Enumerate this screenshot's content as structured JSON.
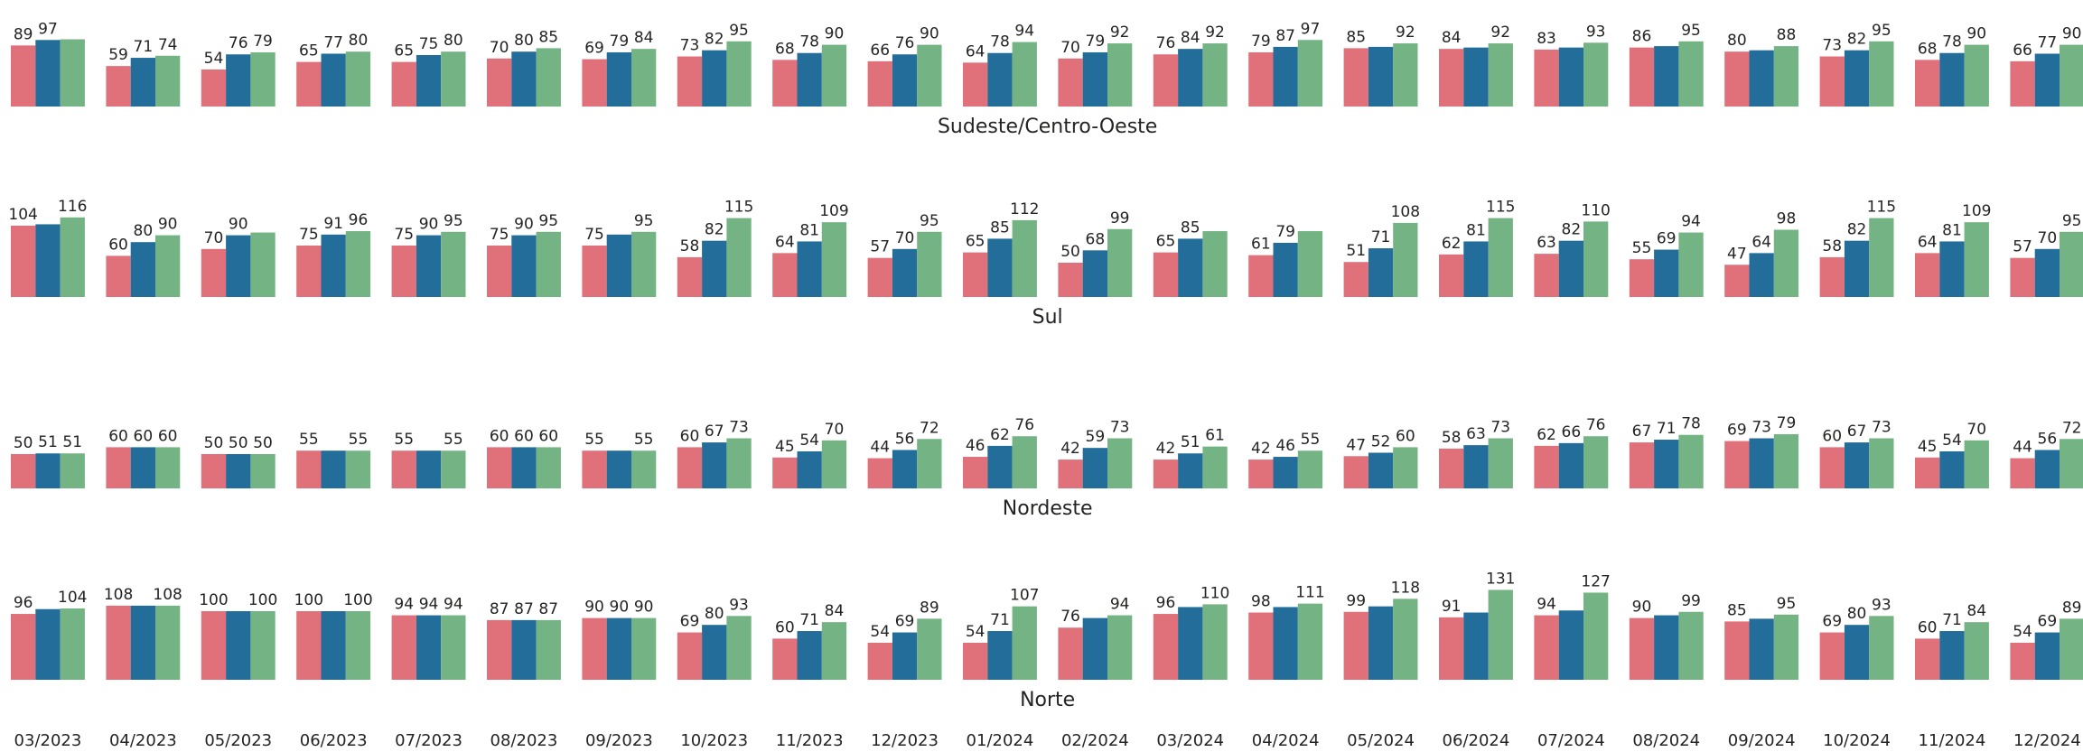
{
  "chart_data": [
    {
      "type": "bar",
      "title": "Sudeste/Centro-Oeste",
      "series": [
        {
          "color": "#e0707a",
          "values": [
            89,
            59,
            54,
            65,
            65,
            70,
            69,
            73,
            68,
            66,
            64,
            70,
            76,
            79,
            85,
            84,
            83,
            86,
            80,
            73,
            68,
            66
          ],
          "value_labels": [
            "89",
            "59",
            "54",
            "65",
            "65",
            "70",
            "69",
            "73",
            "68",
            "66",
            "64",
            "70",
            "76",
            "79",
            "85",
            "84",
            "83",
            "86",
            "80",
            "73",
            "68",
            "66"
          ]
        },
        {
          "color": "#236d9a",
          "values": [
            97,
            71,
            76,
            77,
            75,
            80,
            79,
            82,
            78,
            76,
            78,
            79,
            84,
            87,
            87,
            86,
            86,
            88,
            82,
            82,
            78,
            77
          ],
          "value_labels": [
            "97",
            "71",
            "76",
            "77",
            "75",
            "80",
            "79",
            "82",
            "78",
            "76",
            "78",
            "79",
            "84",
            "87",
            null,
            null,
            null,
            null,
            null,
            "82",
            "78",
            "77"
          ]
        },
        {
          "color": "#74b383",
          "values": [
            98,
            74,
            79,
            80,
            80,
            85,
            84,
            95,
            90,
            90,
            94,
            92,
            92,
            97,
            92,
            92,
            93,
            95,
            88,
            95,
            90,
            90
          ],
          "value_labels": [
            null,
            "74",
            "79",
            "80",
            "80",
            "85",
            "84",
            "95",
            "90",
            "90",
            "94",
            "92",
            "92",
            "97",
            "92",
            "92",
            "93",
            "95",
            "88",
            "95",
            "90",
            "90"
          ]
        }
      ]
    },
    {
      "type": "bar",
      "title": "Sul",
      "series": [
        {
          "color": "#e0707a",
          "values": [
            104,
            60,
            70,
            75,
            75,
            75,
            75,
            58,
            64,
            57,
            65,
            50,
            65,
            61,
            51,
            62,
            63,
            55,
            47,
            58,
            64,
            57
          ],
          "value_labels": [
            "104",
            "60",
            "70",
            "75",
            "75",
            "75",
            "75",
            "58",
            "64",
            "57",
            "65",
            "50",
            "65",
            "61",
            "51",
            "62",
            "63",
            "55",
            "47",
            "58",
            "64",
            "57"
          ]
        },
        {
          "color": "#236d9a",
          "values": [
            106,
            80,
            90,
            91,
            90,
            90,
            91,
            82,
            81,
            70,
            85,
            68,
            85,
            79,
            71,
            81,
            82,
            69,
            64,
            82,
            81,
            70
          ],
          "value_labels": [
            null,
            "80",
            "90",
            "91",
            "90",
            "90",
            null,
            "82",
            "81",
            "70",
            "85",
            "68",
            "85",
            "79",
            "71",
            "81",
            "82",
            "69",
            "64",
            "82",
            "81",
            "70"
          ]
        },
        {
          "color": "#74b383",
          "values": [
            116,
            90,
            94,
            96,
            95,
            95,
            95,
            115,
            109,
            95,
            112,
            99,
            96,
            96,
            108,
            115,
            110,
            94,
            98,
            115,
            109,
            95
          ],
          "value_labels": [
            "116",
            "90",
            null,
            "96",
            "95",
            "95",
            "95",
            "115",
            "109",
            "95",
            "112",
            "99",
            null,
            null,
            "108",
            "115",
            "110",
            "94",
            "98",
            "115",
            "109",
            "95"
          ]
        }
      ]
    },
    {
      "type": "bar",
      "title": "Nordeste",
      "series": [
        {
          "color": "#e0707a",
          "values": [
            50,
            60,
            50,
            55,
            55,
            60,
            55,
            60,
            45,
            44,
            46,
            42,
            42,
            42,
            47,
            58,
            62,
            67,
            69,
            60,
            45,
            44
          ],
          "value_labels": [
            "50",
            "60",
            "50",
            "55",
            "55",
            "60",
            "55",
            "60",
            "45",
            "44",
            "46",
            "42",
            "42",
            "42",
            "47",
            "58",
            "62",
            "67",
            "69",
            "60",
            "45",
            "44"
          ]
        },
        {
          "color": "#236d9a",
          "values": [
            51,
            60,
            50,
            55,
            55,
            60,
            55,
            67,
            54,
            56,
            62,
            59,
            51,
            46,
            52,
            63,
            66,
            71,
            73,
            67,
            54,
            56
          ],
          "value_labels": [
            "51",
            "60",
            "50",
            null,
            null,
            "60",
            null,
            "67",
            "54",
            "56",
            "62",
            "59",
            "51",
            "46",
            "52",
            "63",
            "66",
            "71",
            "73",
            "67",
            "54",
            "56"
          ]
        },
        {
          "color": "#74b383",
          "values": [
            51,
            60,
            50,
            55,
            55,
            60,
            55,
            73,
            70,
            72,
            76,
            73,
            61,
            55,
            60,
            73,
            76,
            78,
            79,
            73,
            70,
            72
          ],
          "value_labels": [
            "51",
            "60",
            "50",
            "55",
            "55",
            "60",
            "55",
            "73",
            "70",
            "72",
            "76",
            "73",
            "61",
            "55",
            "60",
            "73",
            "76",
            "78",
            "79",
            "73",
            "70",
            "72"
          ]
        }
      ]
    },
    {
      "type": "bar",
      "title": "Norte",
      "categories": [
        "03/2023",
        "04/2023",
        "05/2023",
        "06/2023",
        "07/2023",
        "08/2023",
        "09/2023",
        "10/2023",
        "11/2023",
        "12/2023",
        "01/2024",
        "02/2024",
        "03/2024",
        "04/2024",
        "05/2024",
        "06/2024",
        "07/2024",
        "08/2024",
        "09/2024",
        "10/2024",
        "11/2024",
        "12/2024"
      ],
      "series": [
        {
          "color": "#e0707a",
          "values": [
            96,
            108,
            100,
            100,
            94,
            87,
            90,
            69,
            60,
            54,
            54,
            76,
            96,
            98,
            99,
            91,
            94,
            90,
            85,
            69,
            60,
            54
          ],
          "value_labels": [
            "96",
            "108",
            "100",
            "100",
            "94",
            "87",
            "90",
            "69",
            "60",
            "54",
            "54",
            "76",
            "96",
            "98",
            "99",
            "91",
            "94",
            "90",
            "85",
            "69",
            "60",
            "54"
          ]
        },
        {
          "color": "#236d9a",
          "values": [
            103,
            108,
            100,
            100,
            94,
            87,
            90,
            80,
            71,
            69,
            71,
            90,
            106,
            106,
            107,
            98,
            101,
            94,
            89,
            80,
            71,
            69
          ],
          "value_labels": [
            null,
            null,
            null,
            null,
            "94",
            "87",
            "90",
            "80",
            "71",
            "69",
            "71",
            null,
            null,
            null,
            null,
            null,
            null,
            null,
            null,
            "80",
            "71",
            "69"
          ]
        },
        {
          "color": "#74b383",
          "values": [
            104,
            108,
            100,
            100,
            94,
            87,
            90,
            93,
            84,
            89,
            107,
            94,
            110,
            111,
            118,
            131,
            127,
            99,
            95,
            93,
            84,
            89
          ],
          "value_labels": [
            "104",
            "108",
            "100",
            "100",
            "94",
            "87",
            "90",
            "93",
            "84",
            "89",
            "107",
            "94",
            "110",
            "111",
            "118",
            "131",
            "127",
            "99",
            "95",
            "93",
            "84",
            "89"
          ]
        }
      ]
    }
  ]
}
